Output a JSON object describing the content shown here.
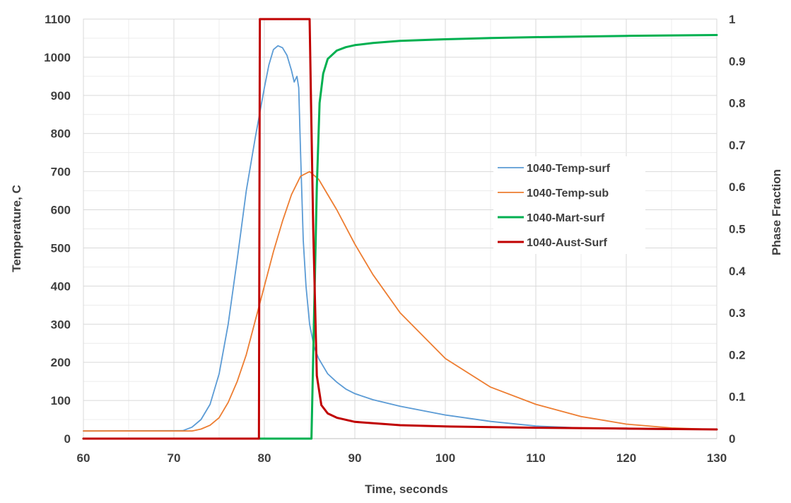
{
  "chart_data": {
    "type": "line",
    "title": "",
    "xlabel": "Time, seconds",
    "ylabel": "Temperature, C",
    "y2label": "Phase Fraction",
    "xlim": [
      60,
      130
    ],
    "ylim": [
      0,
      1100
    ],
    "y2lim": [
      0,
      1
    ],
    "x_ticks": [
      60,
      70,
      80,
      90,
      100,
      110,
      120,
      130
    ],
    "y_ticks": [
      0,
      100,
      200,
      300,
      400,
      500,
      600,
      700,
      800,
      900,
      1000,
      1100
    ],
    "y2_ticks": [
      "0",
      "0.1",
      "0.2",
      "0.3",
      "0.4",
      "0.5",
      "0.6",
      "0.7",
      "0.8",
      "0.9",
      "1"
    ],
    "grid": true,
    "legend_position": "center-right",
    "series": [
      {
        "name": "1040-Temp-surf",
        "axis": "left",
        "color": "#5b9bd5",
        "x": [
          60,
          71,
          72,
          73,
          74,
          75,
          76,
          77,
          78,
          79,
          80,
          80.5,
          81,
          81.5,
          82,
          82.5,
          83,
          83.3,
          83.6,
          83.8,
          84,
          84.3,
          84.6,
          85,
          85.5,
          86,
          87,
          88,
          89,
          90,
          92,
          95,
          100,
          105,
          110,
          115,
          120,
          125,
          130
        ],
        "y": [
          20,
          21,
          30,
          50,
          90,
          170,
          300,
          470,
          650,
          790,
          920,
          980,
          1020,
          1030,
          1025,
          1005,
          965,
          935,
          950,
          920,
          750,
          520,
          400,
          300,
          240,
          210,
          170,
          148,
          130,
          118,
          102,
          85,
          62,
          45,
          33,
          28,
          25,
          24,
          24
        ]
      },
      {
        "name": "1040-Temp-sub",
        "axis": "left",
        "color": "#ed7d31",
        "x": [
          60,
          72,
          73,
          74,
          75,
          76,
          77,
          78,
          79,
          80,
          81,
          82,
          83,
          84,
          85,
          86,
          87,
          88,
          90,
          92,
          95,
          100,
          105,
          110,
          115,
          120,
          125,
          130
        ],
        "y": [
          20,
          20,
          25,
          35,
          55,
          95,
          150,
          220,
          310,
          400,
          490,
          570,
          640,
          688,
          700,
          680,
          640,
          600,
          510,
          430,
          330,
          210,
          135,
          90,
          58,
          38,
          28,
          24
        ]
      },
      {
        "name": "1040-Mart-surf",
        "axis": "right",
        "color": "#00b050",
        "x": [
          60,
          85.2,
          85.5,
          85.8,
          86.1,
          86.5,
          87,
          88,
          89,
          90,
          92,
          95,
          100,
          105,
          110,
          120,
          130
        ],
        "y": [
          0,
          0,
          0.3,
          0.6,
          0.8,
          0.87,
          0.905,
          0.925,
          0.933,
          0.938,
          0.943,
          0.948,
          0.952,
          0.955,
          0.957,
          0.96,
          0.962
        ]
      },
      {
        "name": "1040-Aust-Surf",
        "axis": "right",
        "color": "#c00000",
        "x": [
          60,
          79.4,
          79.5,
          85.0,
          85.4,
          85.8,
          86.3,
          87,
          88,
          90,
          95,
          100,
          110,
          120,
          130
        ],
        "y": [
          0,
          0,
          1,
          1,
          0.5,
          0.15,
          0.08,
          0.06,
          0.05,
          0.04,
          0.032,
          0.029,
          0.026,
          0.024,
          0.022
        ]
      }
    ]
  }
}
